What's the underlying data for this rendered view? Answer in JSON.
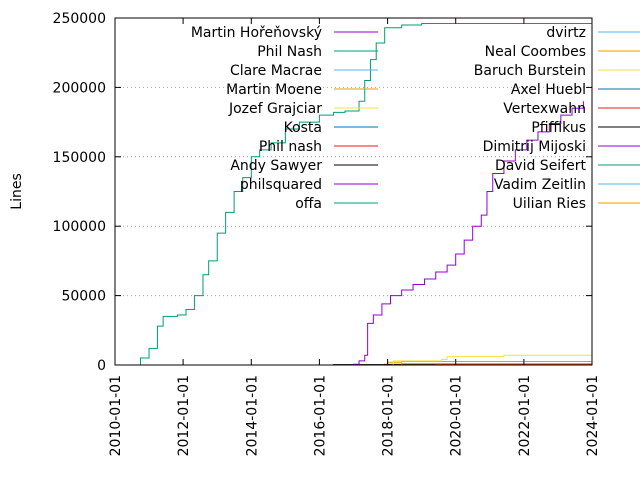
{
  "chart_data": {
    "type": "line",
    "title": "",
    "xlabel": "",
    "ylabel": "Lines",
    "x_tick_labels": [
      "2010-01-01",
      "2012-01-01",
      "2014-01-01",
      "2016-01-01",
      "2018-01-01",
      "2020-01-01",
      "2022-01-01",
      "2024-01-01"
    ],
    "x_ticks": [
      "2010-01-01",
      "2012-01-01",
      "2014-01-01",
      "2016-01-01",
      "2018-01-01",
      "2020-01-01",
      "2022-01-01",
      "2024-01-01"
    ],
    "y_tick_labels": [
      "0",
      "50000",
      "100000",
      "150000",
      "200000",
      "250000"
    ],
    "y_ticks": [
      0,
      50000,
      100000,
      150000,
      200000,
      250000
    ],
    "xlim": [
      "2010-01-01",
      "2024-01-01"
    ],
    "ylim": [
      0,
      250000
    ],
    "grid": "horizontal dotted",
    "legend_position": "inside top, two columns",
    "series": [
      {
        "name": "Martin Hořeňovský",
        "color": "#9400d3",
        "points": []
      },
      {
        "name": "Phil Nash",
        "color": "#009e73",
        "points": []
      },
      {
        "name": "Clare Macrae",
        "color": "#56b4e9",
        "points": []
      },
      {
        "name": "Martin Moene",
        "color": "#e69f00",
        "points": [
          [
            "2013-01-01",
            0
          ],
          [
            "2017-12-01",
            600
          ],
          [
            "2024-01-01",
            600
          ]
        ]
      },
      {
        "name": "Jozef Grajciar",
        "color": "#f0e442",
        "points": []
      },
      {
        "name": "Kosta",
        "color": "#0072b2",
        "points": []
      },
      {
        "name": "Phil nash",
        "color": "#e51e10",
        "points": []
      },
      {
        "name": "Andy Sawyer",
        "color": "#000000",
        "points": [
          [
            "2013-01-01",
            0
          ],
          [
            "2016-06-01",
            300
          ],
          [
            "2024-01-01",
            300
          ]
        ]
      },
      {
        "name": "philsquared",
        "color": "#9400d3",
        "points": [
          [
            "2015-01-01",
            0
          ],
          [
            "2017-01-01",
            500
          ],
          [
            "2017-03-01",
            3000
          ],
          [
            "2017-05-01",
            7000
          ],
          [
            "2017-06-01",
            30000
          ],
          [
            "2017-08-01",
            36000
          ],
          [
            "2017-11-01",
            44000
          ],
          [
            "2018-02-01",
            50000
          ],
          [
            "2018-06-01",
            54000
          ],
          [
            "2018-10-01",
            58000
          ],
          [
            "2019-02-01",
            62000
          ],
          [
            "2019-06-01",
            67000
          ],
          [
            "2019-10-01",
            72000
          ],
          [
            "2020-01-01",
            80000
          ],
          [
            "2020-04-01",
            90000
          ],
          [
            "2020-07-01",
            100000
          ],
          [
            "2020-10-01",
            108000
          ],
          [
            "2020-12-01",
            125000
          ],
          [
            "2021-02-01",
            138000
          ],
          [
            "2021-06-01",
            147000
          ],
          [
            "2021-10-01",
            155000
          ],
          [
            "2022-02-01",
            162000
          ],
          [
            "2022-06-01",
            168000
          ],
          [
            "2022-10-01",
            174000
          ],
          [
            "2023-02-01",
            180000
          ],
          [
            "2023-06-01",
            185000
          ],
          [
            "2023-10-01",
            190000
          ]
        ]
      },
      {
        "name": "offa",
        "color": "#009e73",
        "points": []
      },
      {
        "name": "dvirtz",
        "color": "#56b4e9",
        "points": []
      },
      {
        "name": "Neal Coombes",
        "color": "#e69f00",
        "points": [
          [
            "2017-06-01",
            0
          ],
          [
            "2018-01-01",
            2000
          ],
          [
            "2018-06-01",
            2500
          ],
          [
            "2024-01-01",
            2500
          ]
        ]
      },
      {
        "name": "Baruch Burstein",
        "color": "#f0e442",
        "points": [
          [
            "2017-08-01",
            0
          ],
          [
            "2018-03-01",
            3000
          ],
          [
            "2019-08-01",
            4000
          ],
          [
            "2019-10-01",
            6000
          ],
          [
            "2021-06-01",
            7000
          ],
          [
            "2024-01-01",
            7000
          ]
        ]
      },
      {
        "name": "Axel Huebl",
        "color": "#0072b2",
        "points": []
      },
      {
        "name": "Vertexwahn",
        "color": "#e51e10",
        "points": [
          [
            "2018-01-01",
            0
          ],
          [
            "2019-06-01",
            500
          ],
          [
            "2024-01-01",
            500
          ]
        ]
      },
      {
        "name": "Pfiffikus",
        "color": "#000000",
        "points": []
      },
      {
        "name": "Dimitrij Mijoski",
        "color": "#9400d3",
        "points": []
      },
      {
        "name": "David Seifert",
        "color": "#009e73",
        "points": [
          [
            "2010-08-01",
            0
          ],
          [
            "2010-10-01",
            5000
          ],
          [
            "2011-01-01",
            12000
          ],
          [
            "2011-04-01",
            28000
          ],
          [
            "2011-06-01",
            35000
          ],
          [
            "2011-11-01",
            36000
          ],
          [
            "2012-02-01",
            40000
          ],
          [
            "2012-05-01",
            50000
          ],
          [
            "2012-08-01",
            65000
          ],
          [
            "2012-10-01",
            75000
          ],
          [
            "2013-01-01",
            95000
          ],
          [
            "2013-04-01",
            110000
          ],
          [
            "2013-07-01",
            125000
          ],
          [
            "2013-10-01",
            135000
          ],
          [
            "2014-01-01",
            150000
          ],
          [
            "2014-04-01",
            155000
          ],
          [
            "2014-08-01",
            160000
          ],
          [
            "2015-01-01",
            170000
          ],
          [
            "2015-06-01",
            175000
          ],
          [
            "2016-01-01",
            180000
          ],
          [
            "2016-06-01",
            182000
          ],
          [
            "2016-10-01",
            183000
          ],
          [
            "2017-01-01",
            183000
          ],
          [
            "2017-03-01",
            190000
          ],
          [
            "2017-05-01",
            205000
          ],
          [
            "2017-07-01",
            220000
          ],
          [
            "2017-09-01",
            232000
          ],
          [
            "2017-12-01",
            243000
          ],
          [
            "2018-06-01",
            245000
          ],
          [
            "2019-01-01",
            246000
          ],
          [
            "2024-01-01",
            246000
          ]
        ]
      },
      {
        "name": "Vadim Zeitlin",
        "color": "#56b4e9",
        "points": []
      },
      {
        "name": "Uilian Ries",
        "color": "#e69f00",
        "points": [
          [
            "2017-10-01",
            0
          ],
          [
            "2018-06-01",
            1000
          ],
          [
            "2024-01-01",
            1000
          ]
        ]
      }
    ]
  }
}
